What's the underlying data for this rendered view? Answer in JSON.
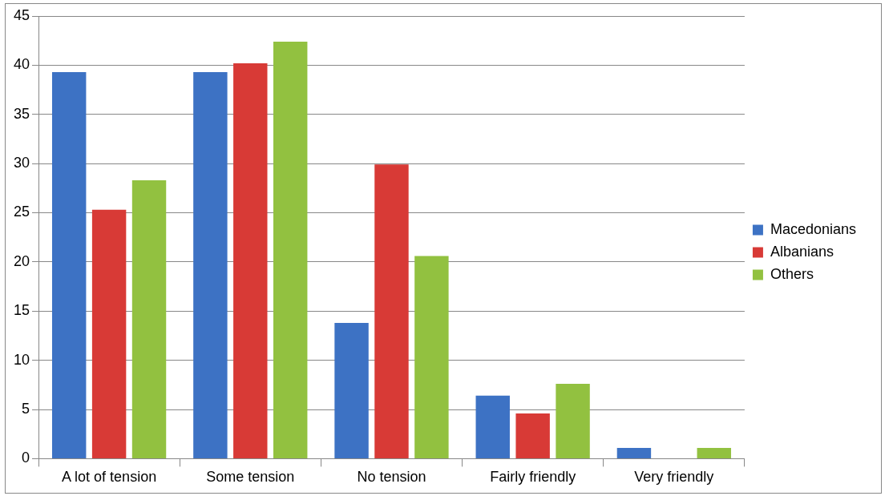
{
  "chart_data": {
    "type": "bar",
    "categories": [
      "A lot of tension",
      "Some tension",
      "No tension",
      "Fairly friendly",
      "Very friendly"
    ],
    "series": [
      {
        "name": "Macedonians",
        "color": "#3d72c4",
        "values": [
          39.3,
          39.3,
          13.8,
          6.4,
          1.1
        ]
      },
      {
        "name": "Albanians",
        "color": "#d83a36",
        "values": [
          25.3,
          40.2,
          29.9,
          4.6,
          0
        ]
      },
      {
        "name": "Others",
        "color": "#92c140",
        "values": [
          28.3,
          42.4,
          20.6,
          7.6,
          1.1
        ]
      }
    ],
    "ylim": [
      0,
      45
    ],
    "yticks": [
      0,
      5,
      10,
      15,
      20,
      25,
      30,
      35,
      40,
      45
    ],
    "grid": "y",
    "legend": "right"
  }
}
